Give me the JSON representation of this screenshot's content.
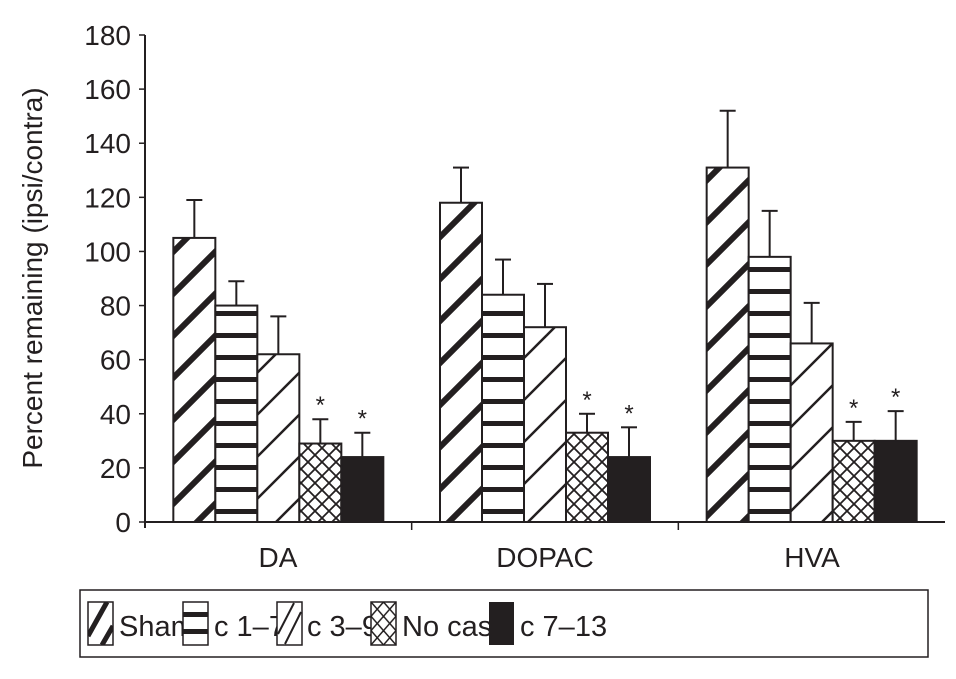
{
  "chart_data": {
    "type": "bar",
    "title": "",
    "xlabel": "",
    "ylabel": "Percent remaining (ipsi/contra)",
    "ylim": [
      0,
      180
    ],
    "yticks": [
      0,
      20,
      40,
      60,
      80,
      100,
      120,
      140,
      160,
      180
    ],
    "grid": false,
    "legend_position": "bottom",
    "categories": [
      "DA",
      "DOPAC",
      "HVA"
    ],
    "series": [
      {
        "name": "Sham",
        "pattern": "thick-diagonal",
        "values": [
          105,
          118,
          131
        ],
        "error_upper": [
          119,
          131,
          152
        ],
        "significant": [
          false,
          false,
          false
        ]
      },
      {
        "name": "c 1–7",
        "pattern": "horizontal-bars",
        "values": [
          80,
          84,
          98
        ],
        "error_upper": [
          89,
          97,
          115
        ],
        "significant": [
          false,
          false,
          false
        ]
      },
      {
        "name": "c 3–9",
        "pattern": "thin-diagonal",
        "values": [
          62,
          72,
          66
        ],
        "error_upper": [
          76,
          88,
          81
        ],
        "significant": [
          false,
          false,
          false
        ]
      },
      {
        "name": "No cast",
        "pattern": "crosshatch",
        "values": [
          29,
          33,
          30
        ],
        "error_upper": [
          38,
          40,
          37
        ],
        "significant": [
          true,
          true,
          true
        ]
      },
      {
        "name": "c 7–13",
        "pattern": "solid",
        "values": [
          24,
          24,
          30
        ],
        "error_upper": [
          33,
          35,
          41
        ],
        "significant": [
          true,
          true,
          true
        ]
      }
    ],
    "significance_marker": "*",
    "colors": {
      "ink": "#231f20",
      "background": "#ffffff"
    }
  }
}
